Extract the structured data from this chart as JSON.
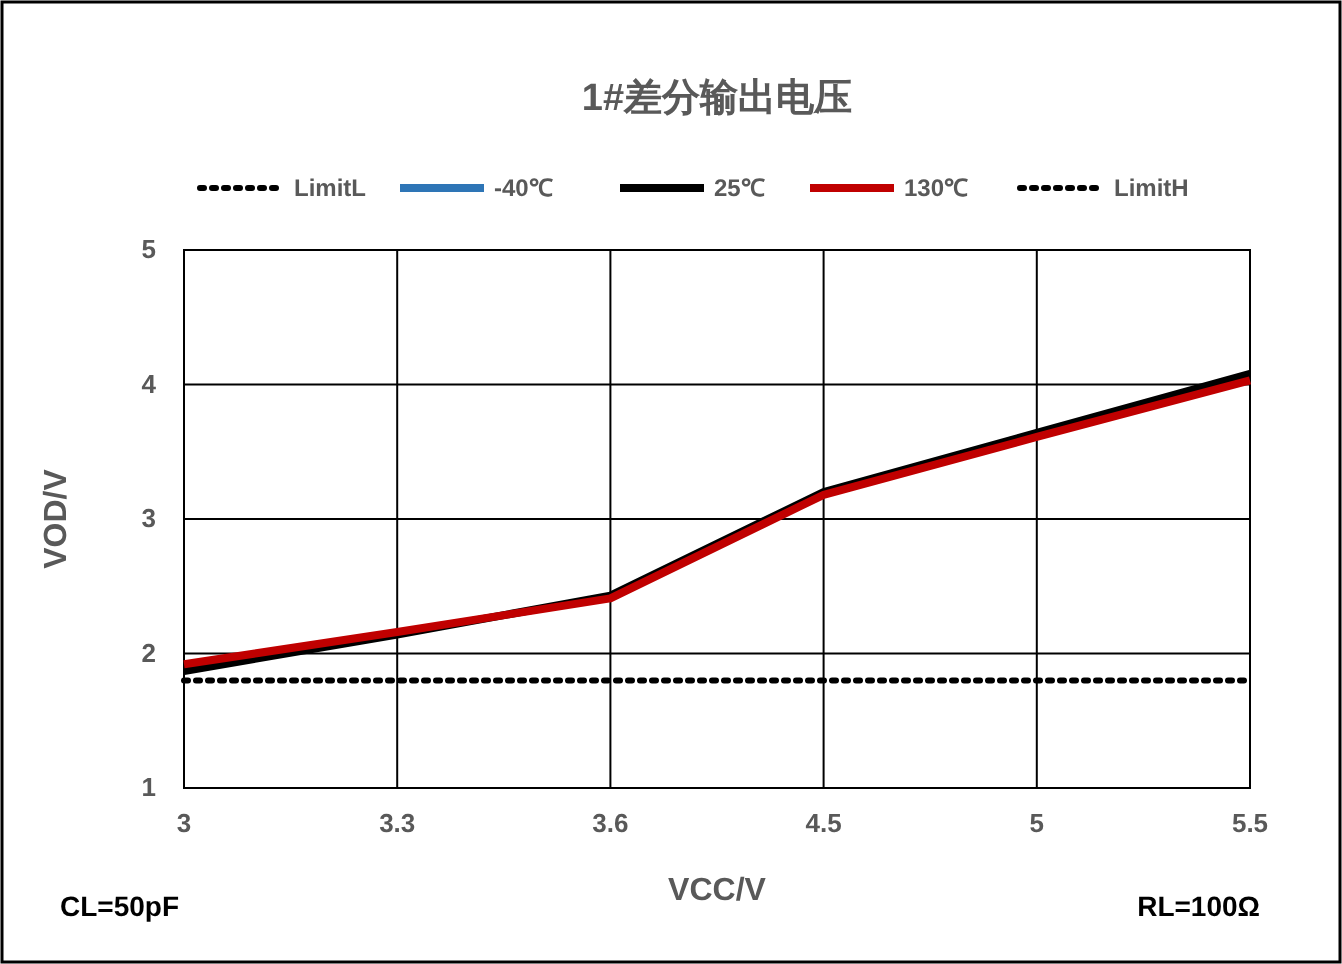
{
  "chart_data": {
    "type": "line",
    "title": "1#差分输出电压",
    "xlabel": "VCC/V",
    "ylabel": "VOD/V",
    "categories": [
      "3",
      "3.3",
      "3.6",
      "4.5",
      "5",
      "5.5"
    ],
    "series": [
      {
        "name": "LimitL",
        "color": "#000000",
        "line_style": "dotted",
        "values": [
          1.8,
          1.8,
          1.8,
          1.8,
          1.8,
          1.8
        ]
      },
      {
        "name": "-40℃",
        "color": "#2e75b6",
        "values": [
          null,
          null,
          null,
          null,
          null,
          null
        ]
      },
      {
        "name": "25℃",
        "color": "#000000",
        "values": [
          1.87,
          2.14,
          2.43,
          3.2,
          3.64,
          4.08
        ]
      },
      {
        "name": "130℃",
        "color": "#c00000",
        "values": [
          1.92,
          2.16,
          2.41,
          3.18,
          3.61,
          4.03
        ]
      },
      {
        "name": "LimitH",
        "color": "#000000",
        "line_style": "dotted",
        "values": [
          null,
          null,
          null,
          null,
          null,
          null
        ]
      }
    ],
    "ylim": [
      1,
      5
    ],
    "yticks": [
      1,
      2,
      3,
      4,
      5
    ],
    "grid": true,
    "legend": "top",
    "marker": "none",
    "annotations": [
      "CL=50pF",
      "RL=100Ω"
    ]
  }
}
